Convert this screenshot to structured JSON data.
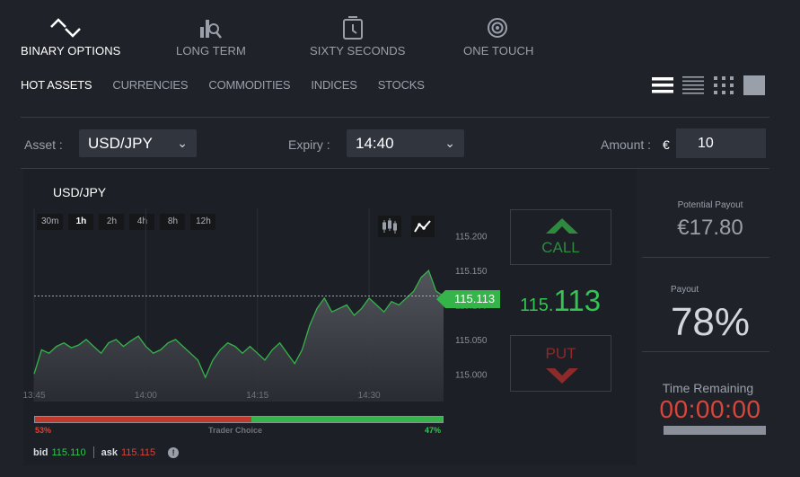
{
  "mode_tabs": [
    {
      "label": "BINARY OPTIONS",
      "icon": "binary-options-icon",
      "active": true
    },
    {
      "label": "LONG TERM",
      "icon": "long-term-icon",
      "active": false
    },
    {
      "label": "SIXTY SECONDS",
      "icon": "stopwatch-icon",
      "active": false
    },
    {
      "label": "ONE TOUCH",
      "icon": "target-icon",
      "active": false
    }
  ],
  "asset_tabs": [
    {
      "label": "HOT ASSETS",
      "active": true
    },
    {
      "label": "CURRENCIES",
      "active": false
    },
    {
      "label": "COMMODITIES",
      "active": false
    },
    {
      "label": "INDICES",
      "active": false
    },
    {
      "label": "STOCKS",
      "active": false
    }
  ],
  "view_icons": [
    "list-view-icon",
    "compact-list-icon",
    "grid-view-icon",
    "single-view-icon"
  ],
  "trade_form": {
    "asset_label": "Asset :",
    "asset_value": "USD/JPY",
    "expiry_label": "Expiry :",
    "expiry_value": "14:40",
    "amount_label": "Amount :",
    "currency_symbol": "€",
    "amount_value": "10"
  },
  "chart": {
    "title": "USD/JPY",
    "timeframes": [
      {
        "label": "30m",
        "active": false
      },
      {
        "label": "1h",
        "active": true
      },
      {
        "label": "2h",
        "active": false
      },
      {
        "label": "4h",
        "active": false
      },
      {
        "label": "8h",
        "active": false
      },
      {
        "label": "12h",
        "active": false
      }
    ],
    "current_price_tag": "115.113",
    "big_price_prefix": "115.",
    "big_price_suffix": "113"
  },
  "chart_data": {
    "type": "area",
    "y_ticks": [
      "115.200",
      "115.150",
      "115.100",
      "115.050",
      "115.000"
    ],
    "x_ticks": [
      "13:45",
      "14:00",
      "14:15",
      "14:30"
    ],
    "ylim": [
      114.96,
      115.24
    ],
    "x_start_minutes": 825,
    "x_end_minutes": 880,
    "current_price": 115.113,
    "series": [
      {
        "x": [
          825,
          826,
          827,
          828,
          829,
          830,
          831,
          832,
          833,
          834,
          835,
          836,
          837,
          838,
          839,
          840,
          841,
          842,
          843,
          844,
          845,
          846,
          847,
          848,
          849,
          850,
          851,
          852,
          853,
          854,
          855,
          856,
          857,
          858,
          859,
          860,
          861,
          862,
          863,
          864,
          865,
          866,
          867,
          868,
          869,
          870,
          871,
          872,
          873,
          874,
          875,
          876,
          877,
          878,
          879,
          880
        ],
        "values": [
          115.0,
          115.035,
          115.03,
          115.04,
          115.045,
          115.038,
          115.042,
          115.05,
          115.04,
          115.03,
          115.045,
          115.05,
          115.04,
          115.048,
          115.055,
          115.04,
          115.03,
          115.035,
          115.045,
          115.05,
          115.04,
          115.03,
          115.02,
          114.995,
          115.02,
          115.035,
          115.045,
          115.04,
          115.03,
          115.04,
          115.03,
          115.02,
          115.035,
          115.045,
          115.03,
          115.015,
          115.035,
          115.07,
          115.095,
          115.11,
          115.09,
          115.095,
          115.1,
          115.085,
          115.095,
          115.11,
          115.1,
          115.09,
          115.105,
          115.1,
          115.11,
          115.12,
          115.14,
          115.15,
          115.12,
          115.113
        ]
      }
    ]
  },
  "call_button": {
    "label": "CALL"
  },
  "put_button": {
    "label": "PUT"
  },
  "trader_choice": {
    "label": "Trader Choice",
    "put_pct": "53%",
    "call_pct": "47%",
    "put_fraction": 0.53
  },
  "quote": {
    "bid_label": "bid",
    "bid_value": "115.110",
    "ask_label": "ask",
    "ask_value": "115.115",
    "info_glyph": "!"
  },
  "right_panel": {
    "potential_payout_label": "Potential Payout",
    "potential_payout_value": "€17.80",
    "payout_label": "Payout",
    "payout_value": "78%",
    "time_remaining_label": "Time Remaining",
    "time_remaining_value": "00:00:00"
  },
  "colors": {
    "green": "#35c453",
    "red": "#d9453a",
    "background": "#1f2229"
  }
}
